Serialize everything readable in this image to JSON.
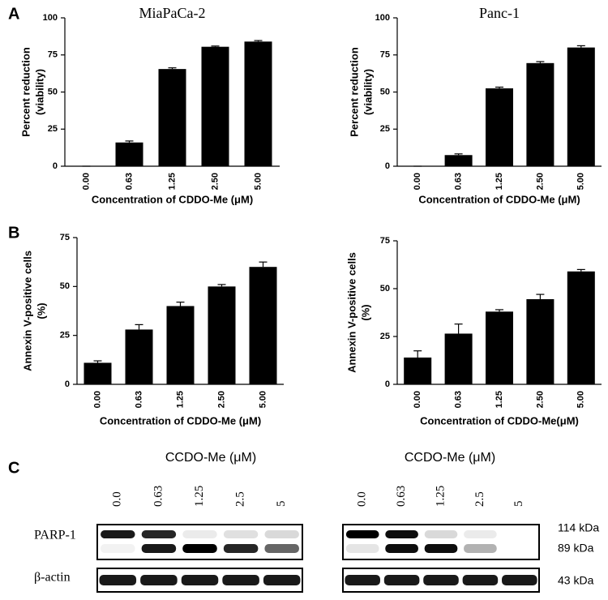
{
  "panel_labels": [
    "A",
    "B",
    "C"
  ],
  "chart_data": [
    {
      "type": "bar",
      "title": "MiaPaCa-2",
      "categories": [
        "0.00",
        "0.63",
        "1.25",
        "2.50",
        "5.00"
      ],
      "values": [
        0,
        16,
        65.5,
        80.5,
        84
      ],
      "errors": [
        0,
        1,
        0.8,
        0.5,
        0.7
      ],
      "color": "#000000",
      "ylim": [
        0,
        100
      ],
      "yticks": [
        0,
        25,
        50,
        75,
        100
      ],
      "ylabel": [
        "Percent reduction",
        "(viability)"
      ],
      "xlabel": "Concentration of CDDO-Me (μM)"
    },
    {
      "type": "bar",
      "title": "Panc-1",
      "categories": [
        "0.00",
        "0.63",
        "1.25",
        "2.50",
        "5.00"
      ],
      "values": [
        0,
        7.5,
        52.5,
        69.5,
        80
      ],
      "errors": [
        0,
        0.8,
        0.8,
        1,
        1.2
      ],
      "color": "#000000",
      "ylim": [
        0,
        100
      ],
      "yticks": [
        0,
        25,
        50,
        75,
        100
      ],
      "ylabel": [
        "Percent reduction",
        "(viability)"
      ],
      "xlabel": "Concentration of CDDO-Me (μM)"
    },
    {
      "type": "bar",
      "categories": [
        "0.00",
        "0.63",
        "1.25",
        "2.50",
        "5.00"
      ],
      "values": [
        11,
        28,
        40,
        50,
        60
      ],
      "errors": [
        1,
        2.5,
        2,
        1,
        2.5
      ],
      "color": "#000000",
      "ylim": [
        0,
        75
      ],
      "yticks": [
        0,
        25,
        50,
        75
      ],
      "ylabel": [
        "Annexin V-positive cells",
        "(%)"
      ],
      "xlabel": "Concentration of CDDO-Me (μM)"
    },
    {
      "type": "bar",
      "categories": [
        "0.00",
        "0.63",
        "1.25",
        "2.50",
        "5.00"
      ],
      "values": [
        14,
        26.5,
        38,
        44.5,
        59
      ],
      "errors": [
        3.5,
        5,
        1,
        2.5,
        1
      ],
      "color": "#000000",
      "ylim": [
        0,
        75
      ],
      "yticks": [
        0,
        25,
        50,
        75
      ],
      "ylabel": [
        "Annexin V-positive cells",
        "(%)"
      ],
      "xlabel": "Concentration of CDDO-Me(μM)"
    }
  ],
  "blot": {
    "panels": [
      {
        "header": "CCDO-Me (μM)",
        "lanes": [
          "0.0",
          "0.63",
          "1.25",
          "2.5",
          "5"
        ]
      },
      {
        "header": "CCDO-Me (μM)",
        "lanes": [
          "0.0",
          "0.63",
          "1.25",
          "2.5",
          "5"
        ]
      }
    ],
    "rows": [
      "PARP-1",
      "β-actin"
    ],
    "sizes": [
      "114 kDa",
      "89 kDa",
      "43 kDa"
    ]
  }
}
